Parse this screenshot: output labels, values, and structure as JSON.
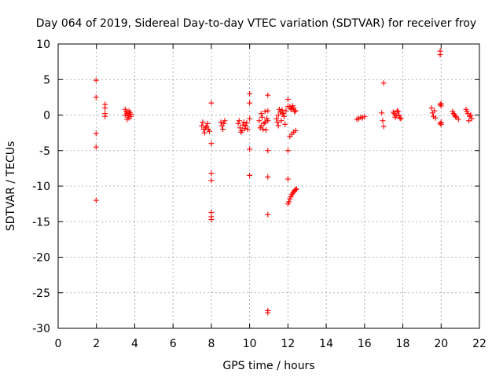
{
  "chart_data": {
    "type": "scatter",
    "title": "Day 064 of 2019, Sidereal Day-to-day VTEC variation (SDTVAR) for receiver froy",
    "xlabel": "GPS time / hours",
    "ylabel": "SDTVAR / TECUs",
    "xlim": [
      0,
      22
    ],
    "ylim": [
      -30,
      10
    ],
    "xticks": [
      0,
      2,
      4,
      6,
      8,
      10,
      12,
      14,
      16,
      18,
      20,
      22
    ],
    "yticks": [
      10,
      5,
      0,
      -5,
      -10,
      -15,
      -20,
      -25,
      -30
    ],
    "grid": true,
    "marker": "plus",
    "color": "#ff0000",
    "series": [
      {
        "name": "SDTVAR",
        "x": [
          1.98,
          1.98,
          1.98,
          1.98,
          1.98,
          2.45,
          2.45,
          2.45,
          2.45,
          3.5,
          3.55,
          3.6,
          3.65,
          3.7,
          3.75,
          3.8,
          3.5,
          3.6,
          3.7,
          3.8,
          7.5,
          7.6,
          7.7,
          7.8,
          7.9,
          7.55,
          7.65,
          7.75,
          7.85,
          8.0,
          8.0,
          8.0,
          8.0,
          8.0,
          8.0,
          8.0,
          8.5,
          8.55,
          8.6,
          8.65,
          8.7,
          9.4,
          9.5,
          9.6,
          9.7,
          9.8,
          9.9,
          9.45,
          9.55,
          9.65,
          9.75,
          9.85,
          10.0,
          10.0,
          10.0,
          10.0,
          10.0,
          10.5,
          10.6,
          10.7,
          10.8,
          10.9,
          10.55,
          10.65,
          10.75,
          10.85,
          10.6,
          10.8,
          10.95,
          10.95,
          10.95,
          10.95,
          10.95,
          10.95,
          10.95,
          10.95,
          11.4,
          11.5,
          11.6,
          11.7,
          11.8,
          11.9,
          11.45,
          11.55,
          11.65,
          11.75,
          11.85,
          11.5,
          11.7,
          12.0,
          12.0,
          12.0,
          12.0,
          12.0,
          12.1,
          12.2,
          12.3,
          12.4,
          12.15,
          12.25,
          12.35,
          12.05,
          12.1,
          12.15,
          12.2,
          12.25,
          12.3,
          12.35,
          12.4,
          12.45,
          12.1,
          12.2,
          12.3,
          12.4,
          15.6,
          15.7,
          15.8,
          15.9,
          16.0,
          16.9,
          16.95,
          17.0,
          17.0,
          17.5,
          17.6,
          17.7,
          17.8,
          17.9,
          17.55,
          17.65,
          17.75,
          17.85,
          19.5,
          19.55,
          19.6,
          19.65,
          19.7,
          19.95,
          19.95,
          19.95,
          19.95,
          20.0,
          20.0,
          20.0,
          20.0,
          20.6,
          20.7,
          20.8,
          20.9,
          20.65,
          20.75,
          21.3,
          21.4,
          21.5,
          21.6,
          21.35,
          21.45,
          21.55
        ],
        "y": [
          4.9,
          2.5,
          -2.6,
          -4.5,
          -12.0,
          1.5,
          1.0,
          0.2,
          -0.2,
          0.8,
          0.5,
          0.2,
          -0.1,
          -0.4,
          0.3,
          -0.2,
          0.0,
          -0.6,
          0.6,
          0.1,
          -1.5,
          -2.0,
          -1.8,
          -1.2,
          -2.3,
          -1.0,
          -2.5,
          -1.6,
          -2.0,
          1.7,
          -4.0,
          -8.2,
          -9.2,
          -13.7,
          -14.3,
          -14.7,
          -1.0,
          -1.5,
          -2.0,
          -1.2,
          -0.8,
          -1.2,
          -1.8,
          -2.2,
          -1.0,
          -1.5,
          -2.0,
          -0.8,
          -2.4,
          -1.4,
          -1.9,
          -1.1,
          3.0,
          1.7,
          -0.5,
          -4.8,
          -8.5,
          -0.8,
          -1.5,
          -2.0,
          -1.0,
          -0.5,
          -1.8,
          -0.3,
          -1.2,
          -2.1,
          0.2,
          0.5,
          2.8,
          0.6,
          -0.8,
          -5.0,
          -8.7,
          -14.0,
          -27.5,
          -27.8,
          -0.5,
          0.0,
          0.5,
          0.3,
          -0.2,
          0.6,
          -1.0,
          0.8,
          -0.8,
          0.2,
          -1.3,
          -1.5,
          0.7,
          2.2,
          1.2,
          -5.0,
          -9.0,
          -12.5,
          1.2,
          0.8,
          1.0,
          0.6,
          0.9,
          1.3,
          0.5,
          -12.2,
          -11.8,
          -11.5,
          -11.2,
          -11.0,
          -10.8,
          -10.6,
          -10.5,
          -10.4,
          -3.0,
          -2.7,
          -2.4,
          -2.2,
          -0.6,
          -0.5,
          -0.3,
          -0.4,
          -0.2,
          0.3,
          -0.8,
          4.5,
          -1.6,
          0.4,
          -0.3,
          0.6,
          0.0,
          -0.5,
          0.2,
          -0.1,
          0.5,
          -0.4,
          1.0,
          0.3,
          -0.2,
          0.6,
          -0.4,
          9.0,
          8.5,
          1.5,
          -1.2,
          1.3,
          -1.0,
          -1.3,
          1.6,
          0.5,
          0.0,
          -0.3,
          -0.6,
          0.2,
          -0.2,
          0.8,
          0.2,
          -0.2,
          -0.5,
          0.5,
          -0.8,
          0.0
        ]
      }
    ]
  }
}
